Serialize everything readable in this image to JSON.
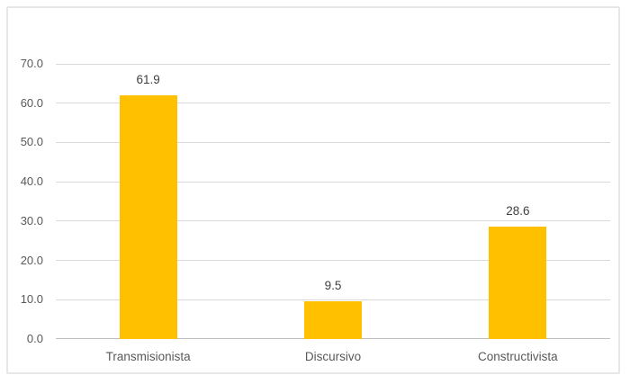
{
  "chart_data": {
    "type": "bar",
    "categories": [
      "Transmisionista",
      "Discursivo",
      "Constructivista"
    ],
    "values": [
      61.9,
      9.5,
      28.6
    ],
    "data_labels": [
      "61.9",
      "9.5",
      "28.6"
    ],
    "title": "",
    "xlabel": "",
    "ylabel": "",
    "ylim": [
      0,
      70
    ],
    "ytick_interval": 10,
    "yticks": [
      "70.0",
      "60.0",
      "50.0",
      "40.0",
      "30.0",
      "20.0",
      "10.0",
      "0.0"
    ],
    "grid": true,
    "legend": false,
    "colors": {
      "bar_fill": "#FFC000",
      "gridline": "#D9D9D9",
      "axis_line": "#BFBFBF",
      "tick_label_text": "#595959",
      "category_label_text": "#595959",
      "data_label_text": "#404040",
      "frame_border": "#E7E7E7",
      "background": "#FFFFFF"
    }
  }
}
